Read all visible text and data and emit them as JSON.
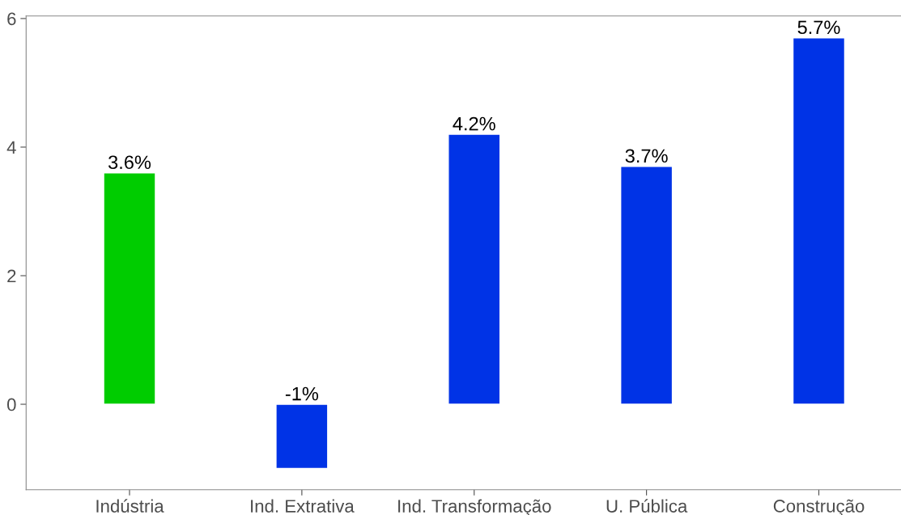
{
  "chart_data": {
    "type": "bar",
    "categories": [
      "Indústria",
      "Ind. Extrativa",
      "Ind. Transformação",
      "U. Pública",
      "Construção"
    ],
    "values": [
      3.6,
      -1,
      4.2,
      3.7,
      5.7
    ],
    "colors": [
      "#00cc00",
      "#0033e6",
      "#0033e6",
      "#0033e6",
      "#0033e6"
    ],
    "value_labels": [
      "3.6%",
      "-1%",
      "4.2%",
      "3.7%",
      "5.7%"
    ],
    "ylim": [
      -1.33,
      6.04
    ],
    "yticks": [
      0,
      2,
      4,
      6
    ],
    "grid": false
  }
}
